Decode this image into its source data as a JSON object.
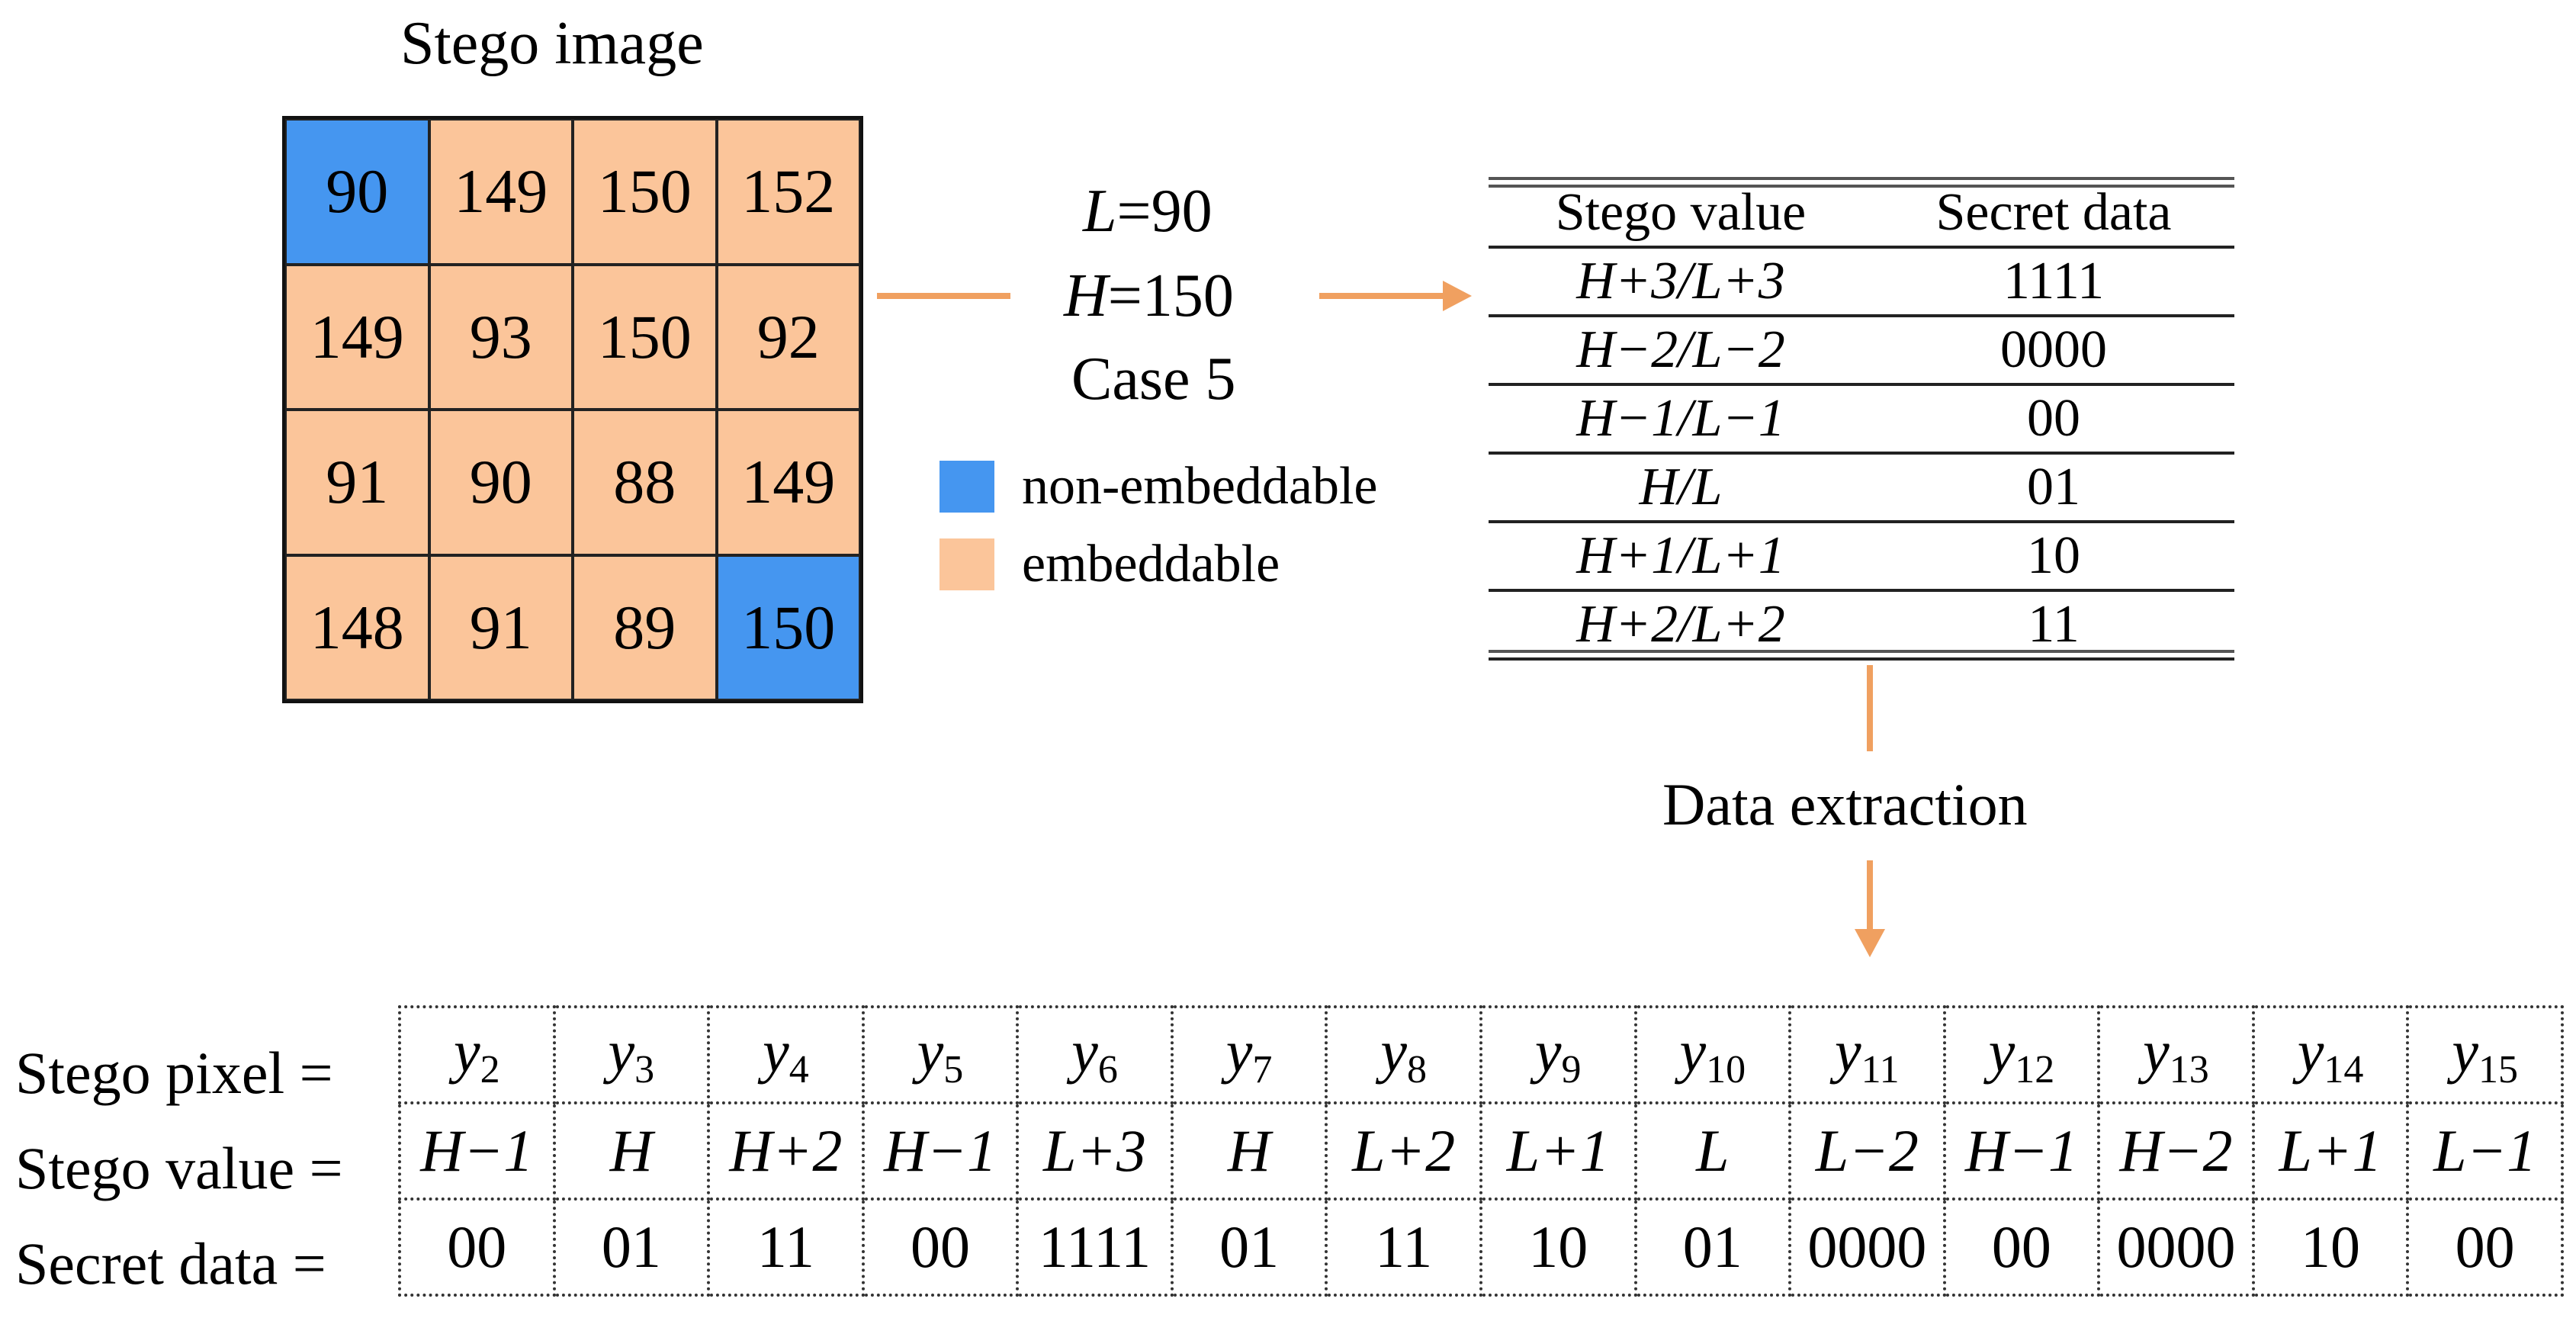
{
  "stego_image": {
    "title": "Stego image",
    "cells": [
      {
        "v": "90",
        "t": "non"
      },
      {
        "v": "149",
        "t": "emb"
      },
      {
        "v": "150",
        "t": "emb"
      },
      {
        "v": "152",
        "t": "emb"
      },
      {
        "v": "149",
        "t": "emb"
      },
      {
        "v": "93",
        "t": "emb"
      },
      {
        "v": "150",
        "t": "emb"
      },
      {
        "v": "92",
        "t": "emb"
      },
      {
        "v": "91",
        "t": "emb"
      },
      {
        "v": "90",
        "t": "emb"
      },
      {
        "v": "88",
        "t": "emb"
      },
      {
        "v": "149",
        "t": "emb"
      },
      {
        "v": "148",
        "t": "emb"
      },
      {
        "v": "91",
        "t": "emb"
      },
      {
        "v": "89",
        "t": "emb"
      },
      {
        "v": "150",
        "t": "non"
      }
    ]
  },
  "params": {
    "L_sym": "L",
    "L_val": "=90",
    "H_sym": "H",
    "H_val": "=150",
    "case": "Case 5"
  },
  "legend": {
    "non_label": "non-embeddable",
    "emb_label": "embeddable"
  },
  "lookup_table": {
    "header": [
      "Stego value",
      "Secret data"
    ],
    "rows": [
      {
        "value": "H+3/L+3",
        "data": "1111"
      },
      {
        "value": "H−2/L−2",
        "data": "0000"
      },
      {
        "value": "H−1/L−1",
        "data": "00"
      },
      {
        "value": "H/L",
        "data": "01"
      },
      {
        "value": "H+1/L+1",
        "data": "10"
      },
      {
        "value": "H+2/L+2",
        "data": "11"
      }
    ]
  },
  "extraction_label": "Data extraction",
  "bottom_table": {
    "row_labels": [
      "Stego pixel  =",
      "Stego value =",
      "Secret data  ="
    ],
    "pixels": [
      "2",
      "3",
      "4",
      "5",
      "6",
      "7",
      "8",
      "9",
      "10",
      "11",
      "12",
      "13",
      "14",
      "15"
    ],
    "pixel_symbol": "y",
    "values": [
      "H−1",
      "H",
      "H+2",
      "H−1",
      "L+3",
      "H",
      "L+2",
      "L+1",
      "L",
      "L−2",
      "H−1",
      "H−2",
      "L+1",
      "L−1"
    ],
    "secret": [
      "00",
      "01",
      "11",
      "00",
      "1111",
      "01",
      "11",
      "10",
      "01",
      "0000",
      "00",
      "0000",
      "10",
      "00"
    ]
  },
  "colors": {
    "embeddable": "#FBC59A",
    "non_embeddable": "#4596F0",
    "arrow": "#F0A060"
  }
}
